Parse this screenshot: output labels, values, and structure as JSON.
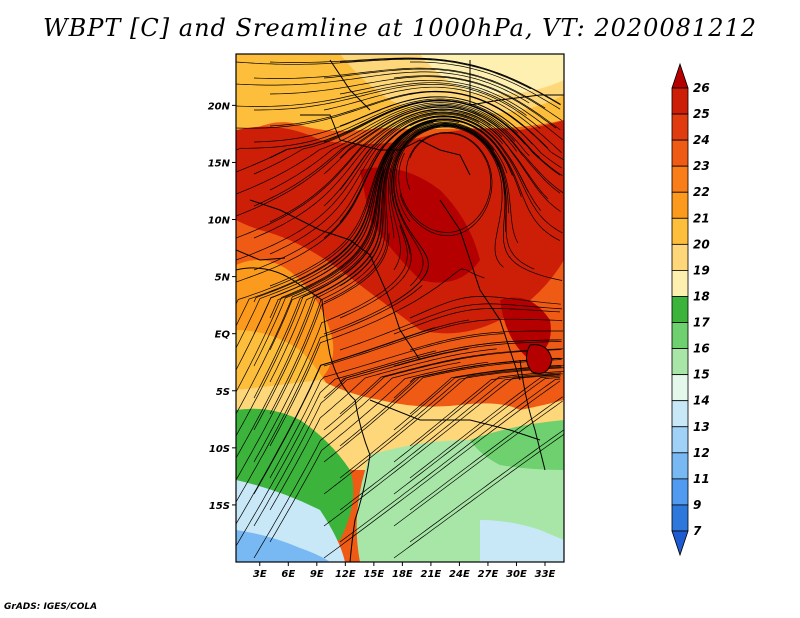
{
  "title": "WBPT [C] and Sreamline at 1000hPa, VT: 2020081212",
  "footer": "GrADS: IGES/COLA",
  "map": {
    "lat_labels": [
      "20N",
      "15N",
      "10N",
      "5N",
      "EQ",
      "5S",
      "10S",
      "15S"
    ],
    "lat_values": [
      20,
      15,
      10,
      5,
      0,
      -5,
      -10,
      -15
    ],
    "lon_labels": [
      "3E",
      "6E",
      "9E",
      "12E",
      "15E",
      "18E",
      "21E",
      "24E",
      "27E",
      "30E",
      "33E"
    ],
    "lon_values": [
      3,
      6,
      9,
      12,
      15,
      18,
      21,
      24,
      27,
      30,
      33
    ],
    "lon_range": [
      0.5,
      35
    ],
    "lat_range": [
      -20,
      24.5
    ]
  },
  "colorbar": {
    "labels": [
      "26",
      "25",
      "24",
      "23",
      "22",
      "21",
      "20",
      "19",
      "18",
      "17",
      "16",
      "15",
      "14",
      "13",
      "12",
      "11",
      "9",
      "7"
    ],
    "colors": [
      "#b40000",
      "#cd1e08",
      "#e03c10",
      "#ef5a14",
      "#f97d18",
      "#fb9a1c",
      "#fdbe3c",
      "#fed77a",
      "#fef0b0",
      "#3cb43c",
      "#6ed06e",
      "#a8e6a8",
      "#e4f8ec",
      "#c8e8f8",
      "#a0d2f8",
      "#78b9f4",
      "#509bf0",
      "#2e78dc",
      "#1e5ad0"
    ]
  },
  "features": {
    "vortex_center": {
      "lon": 22.5,
      "lat": 14.5
    },
    "lake_victoria": {
      "lon": 33,
      "lat": -1
    }
  }
}
